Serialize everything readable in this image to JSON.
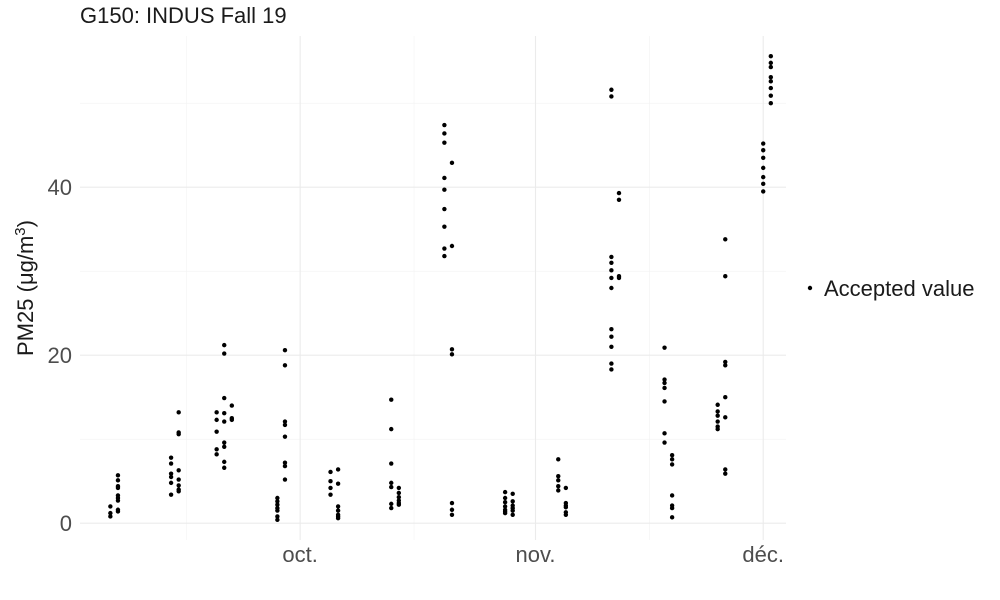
{
  "chart_data": {
    "type": "scatter",
    "title": "G150: INDUS Fall 19",
    "ylabel_main": "PM25 (μg/m",
    "ylabel_sup": "3",
    "ylabel_end": ")",
    "xlabel": "",
    "x_ticks": [
      {
        "label": "oct.",
        "date": "2019-10-01"
      },
      {
        "label": "nov.",
        "date": "2019-11-01"
      },
      {
        "label": "déc.",
        "date": "2019-12-01"
      }
    ],
    "x_minor_dates": [
      "2019-09-16",
      "2019-10-16",
      "2019-11-16"
    ],
    "xlim": [
      "2019-09-02",
      "2019-12-04"
    ],
    "y_ticks": [
      0,
      20,
      40
    ],
    "ylim": [
      -2,
      58
    ],
    "grid": true,
    "legend_position": "right",
    "series": [
      {
        "name": "Accepted value",
        "color": "#000000",
        "points": [
          [
            "2019-09-06",
            0.8
          ],
          [
            "2019-09-06",
            1.2
          ],
          [
            "2019-09-06",
            2.0
          ],
          [
            "2019-09-07",
            3.3
          ],
          [
            "2019-09-07",
            4.4
          ],
          [
            "2019-09-07",
            5.7
          ],
          [
            "2019-09-07",
            1.4
          ],
          [
            "2019-09-07",
            2.7
          ],
          [
            "2019-09-07",
            3.0
          ],
          [
            "2019-09-07",
            4.2
          ],
          [
            "2019-09-07",
            5.1
          ],
          [
            "2019-09-07",
            1.6
          ],
          [
            "2019-09-14",
            3.4
          ],
          [
            "2019-09-14",
            4.8
          ],
          [
            "2019-09-14",
            5.5
          ],
          [
            "2019-09-14",
            5.9
          ],
          [
            "2019-09-14",
            7.1
          ],
          [
            "2019-09-14",
            7.8
          ],
          [
            "2019-09-15",
            4.0
          ],
          [
            "2019-09-15",
            5.2
          ],
          [
            "2019-09-15",
            6.3
          ],
          [
            "2019-09-15",
            10.6
          ],
          [
            "2019-09-15",
            13.2
          ],
          [
            "2019-09-15",
            3.8
          ],
          [
            "2019-09-15",
            4.5
          ],
          [
            "2019-09-15",
            10.8
          ],
          [
            "2019-09-20",
            8.2
          ],
          [
            "2019-09-20",
            8.8
          ],
          [
            "2019-09-20",
            10.9
          ],
          [
            "2019-09-20",
            12.3
          ],
          [
            "2019-09-20",
            13.2
          ],
          [
            "2019-09-21",
            9.6
          ],
          [
            "2019-09-21",
            12.1
          ],
          [
            "2019-09-21",
            13.1
          ],
          [
            "2019-09-21",
            14.9
          ],
          [
            "2019-09-21",
            20.2
          ],
          [
            "2019-09-21",
            21.2
          ],
          [
            "2019-09-21",
            7.3
          ],
          [
            "2019-09-21",
            6.6
          ],
          [
            "2019-09-22",
            12.5
          ],
          [
            "2019-09-22",
            14.0
          ],
          [
            "2019-09-22",
            12.3
          ],
          [
            "2019-09-21",
            9.1
          ],
          [
            "2019-09-28",
            0.4
          ],
          [
            "2019-09-28",
            0.8
          ],
          [
            "2019-09-28",
            1.5
          ],
          [
            "2019-09-28",
            2.2
          ],
          [
            "2019-09-28",
            3.0
          ],
          [
            "2019-09-28",
            1.8
          ],
          [
            "2019-09-28",
            2.6
          ],
          [
            "2019-09-29",
            5.2
          ],
          [
            "2019-09-29",
            6.8
          ],
          [
            "2019-09-29",
            7.2
          ],
          [
            "2019-09-29",
            10.3
          ],
          [
            "2019-09-29",
            11.7
          ],
          [
            "2019-09-29",
            12.1
          ],
          [
            "2019-09-29",
            18.8
          ],
          [
            "2019-09-29",
            20.6
          ],
          [
            "2019-10-05",
            3.4
          ],
          [
            "2019-10-05",
            4.2
          ],
          [
            "2019-10-05",
            5.0
          ],
          [
            "2019-10-05",
            6.1
          ],
          [
            "2019-10-06",
            6.4
          ],
          [
            "2019-10-06",
            4.7
          ],
          [
            "2019-10-06",
            2.0
          ],
          [
            "2019-10-06",
            1.5
          ],
          [
            "2019-10-06",
            1.0
          ],
          [
            "2019-10-06",
            0.6
          ],
          [
            "2019-10-06",
            0.8
          ],
          [
            "2019-10-13",
            1.8
          ],
          [
            "2019-10-13",
            2.3
          ],
          [
            "2019-10-13",
            4.3
          ],
          [
            "2019-10-13",
            4.8
          ],
          [
            "2019-10-13",
            7.1
          ],
          [
            "2019-10-13",
            11.2
          ],
          [
            "2019-10-13",
            14.7
          ],
          [
            "2019-10-14",
            2.2
          ],
          [
            "2019-10-14",
            2.7
          ],
          [
            "2019-10-14",
            3.1
          ],
          [
            "2019-10-14",
            3.6
          ],
          [
            "2019-10-14",
            4.2
          ],
          [
            "2019-10-14",
            2.4
          ],
          [
            "2019-10-20",
            31.8
          ],
          [
            "2019-10-20",
            32.7
          ],
          [
            "2019-10-20",
            35.3
          ],
          [
            "2019-10-20",
            37.4
          ],
          [
            "2019-10-20",
            39.7
          ],
          [
            "2019-10-20",
            41.1
          ],
          [
            "2019-10-20",
            45.3
          ],
          [
            "2019-10-20",
            46.4
          ],
          [
            "2019-10-20",
            47.4
          ],
          [
            "2019-10-21",
            42.9
          ],
          [
            "2019-10-21",
            33.0
          ],
          [
            "2019-10-21",
            20.7
          ],
          [
            "2019-10-21",
            20.1
          ],
          [
            "2019-10-21",
            2.4
          ],
          [
            "2019-10-21",
            1.6
          ],
          [
            "2019-10-21",
            1.0
          ],
          [
            "2019-10-28",
            1.2
          ],
          [
            "2019-10-28",
            1.6
          ],
          [
            "2019-10-28",
            2.0
          ],
          [
            "2019-10-28",
            2.5
          ],
          [
            "2019-10-28",
            3.0
          ],
          [
            "2019-10-28",
            3.7
          ],
          [
            "2019-10-29",
            1.0
          ],
          [
            "2019-10-29",
            1.5
          ],
          [
            "2019-10-29",
            2.1
          ],
          [
            "2019-10-29",
            2.6
          ],
          [
            "2019-10-29",
            3.5
          ],
          [
            "2019-10-28",
            1.4
          ],
          [
            "2019-10-29",
            1.8
          ],
          [
            "2019-11-04",
            3.9
          ],
          [
            "2019-11-04",
            4.4
          ],
          [
            "2019-11-04",
            5.1
          ],
          [
            "2019-11-04",
            5.6
          ],
          [
            "2019-11-04",
            7.6
          ],
          [
            "2019-11-05",
            4.2
          ],
          [
            "2019-11-05",
            2.4
          ],
          [
            "2019-11-05",
            1.9
          ],
          [
            "2019-11-05",
            1.3
          ],
          [
            "2019-11-05",
            1.0
          ],
          [
            "2019-11-05",
            2.1
          ],
          [
            "2019-11-11",
            18.3
          ],
          [
            "2019-11-11",
            19.0
          ],
          [
            "2019-11-11",
            21.0
          ],
          [
            "2019-11-11",
            22.2
          ],
          [
            "2019-11-11",
            23.1
          ],
          [
            "2019-11-11",
            28.0
          ],
          [
            "2019-11-11",
            29.2
          ],
          [
            "2019-11-11",
            30.1
          ],
          [
            "2019-11-11",
            31.0
          ],
          [
            "2019-11-11",
            31.7
          ],
          [
            "2019-11-11",
            50.8
          ],
          [
            "2019-11-11",
            51.6
          ],
          [
            "2019-11-12",
            29.4
          ],
          [
            "2019-11-12",
            29.2
          ],
          [
            "2019-11-12",
            38.5
          ],
          [
            "2019-11-12",
            39.3
          ],
          [
            "2019-11-18",
            14.5
          ],
          [
            "2019-11-18",
            16.1
          ],
          [
            "2019-11-18",
            16.7
          ],
          [
            "2019-11-18",
            17.1
          ],
          [
            "2019-11-18",
            20.9
          ],
          [
            "2019-11-18",
            9.6
          ],
          [
            "2019-11-18",
            10.7
          ],
          [
            "2019-11-19",
            7.0
          ],
          [
            "2019-11-19",
            7.6
          ],
          [
            "2019-11-19",
            8.1
          ],
          [
            "2019-11-19",
            3.3
          ],
          [
            "2019-11-19",
            2.1
          ],
          [
            "2019-11-19",
            1.8
          ],
          [
            "2019-11-19",
            0.7
          ],
          [
            "2019-11-25",
            11.5
          ],
          [
            "2019-11-25",
            12.1
          ],
          [
            "2019-11-25",
            12.8
          ],
          [
            "2019-11-25",
            13.3
          ],
          [
            "2019-11-25",
            14.1
          ],
          [
            "2019-11-26",
            15.0
          ],
          [
            "2019-11-26",
            12.6
          ],
          [
            "2019-11-26",
            18.8
          ],
          [
            "2019-11-26",
            19.2
          ],
          [
            "2019-11-26",
            5.9
          ],
          [
            "2019-11-26",
            6.4
          ],
          [
            "2019-11-26",
            29.4
          ],
          [
            "2019-11-26",
            33.8
          ],
          [
            "2019-11-25",
            11.2
          ],
          [
            "2019-12-01",
            39.5
          ],
          [
            "2019-12-01",
            40.4
          ],
          [
            "2019-12-01",
            41.2
          ],
          [
            "2019-12-01",
            42.3
          ],
          [
            "2019-12-01",
            43.5
          ],
          [
            "2019-12-01",
            44.4
          ],
          [
            "2019-12-01",
            45.2
          ],
          [
            "2019-12-02",
            50.0
          ],
          [
            "2019-12-02",
            50.9
          ],
          [
            "2019-12-02",
            51.8
          ],
          [
            "2019-12-02",
            52.6
          ],
          [
            "2019-12-02",
            53.1
          ],
          [
            "2019-12-02",
            54.3
          ],
          [
            "2019-12-02",
            54.8
          ],
          [
            "2019-12-02",
            55.6
          ]
        ]
      }
    ]
  }
}
